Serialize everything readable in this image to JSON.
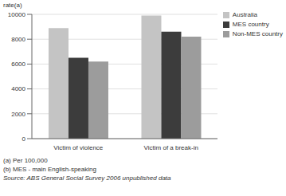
{
  "chart_data": {
    "type": "bar",
    "y_label": "rate(a)",
    "categories": [
      "Victim of violence",
      "Victim of a break-in"
    ],
    "series": [
      {
        "name": "Australia",
        "color": "#c4c4c4",
        "values": [
          8900,
          9900
        ]
      },
      {
        "name": "MES country",
        "color": "#3c3c3c",
        "values": [
          6500,
          8600
        ]
      },
      {
        "name": "Non-MES country",
        "color": "#9c9c9c",
        "values": [
          6200,
          8200
        ]
      }
    ],
    "ylim": [
      0,
      10000
    ],
    "yticks": [
      0,
      2000,
      4000,
      6000,
      8000,
      10000
    ],
    "grid": true,
    "legend": "top right",
    "footnotes": [
      "(a) Per 100,000",
      "(b) MES - main English-speaking",
      "Source: ABS General Social Survey 2006 unpublished data"
    ]
  }
}
